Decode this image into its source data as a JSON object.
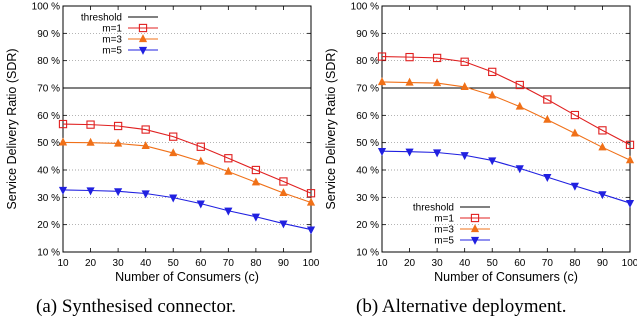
{
  "chart_data": [
    {
      "type": "line",
      "panel": "a",
      "caption": "(a) Synthesised connector.",
      "xlabel": "Number of Consumers (c)",
      "ylabel": "Service Delivery Ratio (SDR)",
      "xlim": [
        10,
        100
      ],
      "ylim": [
        10,
        100
      ],
      "xticks": [
        10,
        20,
        30,
        40,
        50,
        60,
        70,
        80,
        90,
        100
      ],
      "yticks": [
        10,
        20,
        30,
        40,
        50,
        60,
        70,
        80,
        90,
        100
      ],
      "ytick_labels": [
        "10 %",
        "20 %",
        "30 %",
        "40 %",
        "50 %",
        "60 %",
        "70 %",
        "80 %",
        "90 %",
        "100 %"
      ],
      "grid": "horizontal dotted",
      "legend_position": "top-left",
      "threshold": {
        "name": "threshold",
        "value": 70,
        "color": "#000000"
      },
      "x": [
        10,
        20,
        30,
        40,
        50,
        60,
        70,
        80,
        90,
        100
      ],
      "series": [
        {
          "name": "m=1",
          "color": "#e02020",
          "marker": "square",
          "values": [
            56.8,
            56.6,
            56.1,
            54.8,
            52.2,
            48.5,
            44.3,
            40.0,
            35.8,
            31.5
          ]
        },
        {
          "name": "m=3",
          "color": "#f07018",
          "marker": "triangle-up",
          "values": [
            50.1,
            50.0,
            49.7,
            48.8,
            46.2,
            43.1,
            39.4,
            35.5,
            31.6,
            28.1
          ]
        },
        {
          "name": "m=5",
          "color": "#2020e0",
          "marker": "triangle-down",
          "values": [
            32.7,
            32.5,
            32.2,
            31.4,
            29.9,
            27.7,
            25.1,
            22.9,
            20.4,
            18.2
          ]
        }
      ]
    },
    {
      "type": "line",
      "panel": "b",
      "caption": "(b) Alternative deployment.",
      "xlabel": "Number of Consumers (c)",
      "ylabel": "Service Delivery Ratio (SDR)",
      "xlim": [
        10,
        100
      ],
      "ylim": [
        10,
        100
      ],
      "xticks": [
        10,
        20,
        30,
        40,
        50,
        60,
        70,
        80,
        90,
        100
      ],
      "yticks": [
        10,
        20,
        30,
        40,
        50,
        60,
        70,
        80,
        90,
        100
      ],
      "ytick_labels": [
        "10 %",
        "20 %",
        "30 %",
        "40 %",
        "50 %",
        "60 %",
        "70 %",
        "80 %",
        "90 %",
        "100 %"
      ],
      "grid": "horizontal dotted",
      "legend_position": "bottom-left",
      "threshold": {
        "name": "threshold",
        "value": 70,
        "color": "#000000"
      },
      "x": [
        10,
        20,
        30,
        40,
        50,
        60,
        70,
        80,
        90,
        100
      ],
      "series": [
        {
          "name": "m=1",
          "color": "#e02020",
          "marker": "square",
          "values": [
            81.5,
            81.3,
            81.0,
            79.6,
            75.9,
            71.1,
            65.8,
            60.1,
            54.5,
            49.2
          ]
        },
        {
          "name": "m=3",
          "color": "#f07018",
          "marker": "triangle-up",
          "values": [
            72.2,
            72.0,
            71.8,
            70.4,
            67.3,
            63.2,
            58.4,
            53.4,
            48.3,
            43.6
          ]
        },
        {
          "name": "m=5",
          "color": "#2020e0",
          "marker": "triangle-down",
          "values": [
            46.9,
            46.7,
            46.4,
            45.4,
            43.5,
            40.6,
            37.4,
            34.2,
            31.1,
            27.9
          ]
        }
      ]
    }
  ]
}
